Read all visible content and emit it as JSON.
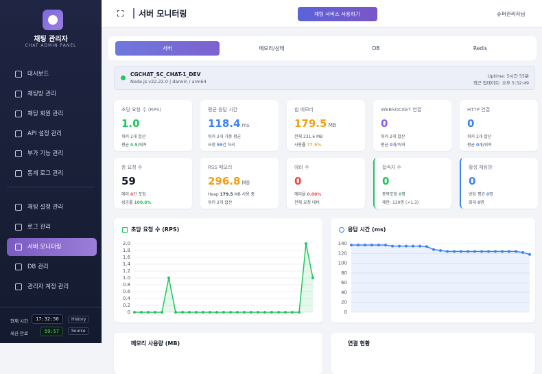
{
  "sidebar": {
    "title": "채팅 관리자",
    "subtitle": "CHAT ADMIN PANEL",
    "menu": [
      [
        "대시보드",
        "채팅방 관리",
        "채팅 회원 관리",
        "API 설정 관리",
        "부가 기능 관리",
        "통계 로그 관리"
      ],
      [
        "채팅 설정 관리",
        "로그 관리",
        "서버 모니터링",
        "DB 관리",
        "관리자 계정 관리"
      ]
    ],
    "active": [
      1,
      2
    ],
    "clock_label": "현재 시간",
    "clock": "17:32:50",
    "history": "History",
    "session_label": "세션 만료",
    "session": "59:57",
    "source": "Source"
  },
  "header": {
    "title": "서버 모니터링",
    "button": "채팅 서비스 사용하기",
    "user": "슈퍼관리자님"
  },
  "tabs": {
    "items": [
      "서버",
      "메모리/상태",
      "DB",
      "Redis"
    ],
    "active": 0
  },
  "server": {
    "name": "CGCHAT_SC_CHAT-1_DEV",
    "runtime": "Node.js v22.22.0 | darwin / arm64",
    "uptime": "Uptime: 5시간 55분",
    "updated": "최근 업데이트: 오후 5:32:49"
  },
  "cards": [
    {
      "label": "초당 요청 수 (RPS)",
      "value": "1.0",
      "color": "#22c55e",
      "lines": [
        [
          "워커 2개 합산"
        ],
        [
          "평균 ",
          "0.5",
          "/워커"
        ]
      ],
      "line_colors": [
        "#22c55e",
        "#22c55e"
      ]
    },
    {
      "label": "평균 응답 시간",
      "value": "118.4",
      "unit": "ms",
      "color": "#3b82f6",
      "lines": [
        [
          "워커 2개 가중 평균"
        ],
        [
          "요청 ",
          "59",
          "건 처리"
        ]
      ],
      "line_colors": [
        "#3b82f6",
        "#3b82f6"
      ]
    },
    {
      "label": "힙 메모리",
      "value": "179.5",
      "unit": "MB",
      "color": "#f59e0b",
      "lines": [
        [
          "전체 231.6 MB"
        ],
        [
          "사용률 ",
          "77.5%"
        ]
      ],
      "line_colors": [
        "#f59e0b",
        "#f59e0b"
      ]
    },
    {
      "label": "WEBSOCKET 연결",
      "value": "0",
      "color": "#8b5cf6",
      "lines": [
        [
          "워커 2개 합산"
        ],
        [
          "평균 ",
          "0",
          "개/워커"
        ]
      ],
      "line_colors": [
        "#8b5cf6",
        "#8b5cf6"
      ]
    },
    {
      "label": "HTTP 연결",
      "value": "0",
      "color": "#3b82f6",
      "lines": [
        [
          "워커 2개 합산"
        ],
        [
          "평균 ",
          "0",
          "개/워커"
        ]
      ],
      "line_colors": [
        "#3b82f6",
        "#3b82f6"
      ]
    },
    {
      "label": "총 요청 수",
      "value": "59",
      "color": "#111827",
      "lines": [
        [
          "에러 ",
          "0",
          "건 포함"
        ],
        [
          "성공률 ",
          "100.0%"
        ]
      ],
      "line_colors": [
        "#ef4444",
        "#22c55e"
      ]
    },
    {
      "label": "RSS 메모리",
      "value": "296.8",
      "unit": "MB",
      "color": "#f59e0b",
      "lines": [
        [
          "Heap ",
          "179.5",
          " MB 사용 중"
        ],
        [
          "워커 2개 합산"
        ]
      ],
      "line_colors": [
        "#374151",
        "#374151"
      ]
    },
    {
      "label": "에러 수",
      "value": "0",
      "color": "#ef4444",
      "lines": [
        [
          "에러율 ",
          "0.00%"
        ],
        [
          "전체 요청 대비"
        ]
      ],
      "line_colors": [
        "#ef4444",
        "#ef4444"
      ]
    },
    {
      "label": "접속자 수",
      "value": "0",
      "color": "#22c55e",
      "border": "#22c55e",
      "lines": [
        [
          "중복포함 ",
          "0",
          "명"
        ],
        [
          "제한: 130명 (×1.3)"
        ]
      ],
      "line_colors": [
        "#22c55e",
        "#22c55e"
      ]
    },
    {
      "label": "활성 채팅방",
      "value": "0",
      "color": "#3b82f6",
      "border": "#3b82f6",
      "lines": [
        [
          "방당 평균 ",
          "0",
          "명"
        ],
        [
          "최대 ",
          "0",
          "명"
        ]
      ],
      "line_colors": [
        "#3b82f6",
        "#3b82f6"
      ]
    }
  ],
  "charts": [
    {
      "type": "line",
      "title": "초당 요청 수 (RPS)",
      "color": "#22c55e",
      "fill": "rgba(34,197,94,0.12)",
      "values": [
        0,
        0,
        0,
        0,
        0,
        1.0,
        0,
        0,
        0,
        0,
        0,
        0,
        0,
        0,
        0,
        0,
        0,
        0,
        0,
        0,
        0,
        0,
        0,
        0,
        0,
        2.0,
        1.0
      ],
      "ylim": [
        0,
        2
      ],
      "yticks": [
        0,
        0.2,
        0.4,
        0.6,
        0.8,
        {
          "value": 1,
          "label": "1.0"
        },
        1.2,
        1.4,
        1.6,
        1.8,
        {
          "value": 2,
          "label": "2.0"
        }
      ],
      "grid": true
    },
    {
      "type": "line",
      "title": "응답 시간 (ms)",
      "color": "#3b82f6",
      "fill": "rgba(59,130,246,0.10)",
      "values": [
        137,
        137,
        137,
        137,
        137,
        137,
        135,
        135,
        135,
        135,
        135,
        134,
        128,
        126,
        124,
        124,
        124,
        124,
        124,
        124,
        124,
        124,
        124,
        124,
        124,
        122,
        118
      ],
      "ylim": [
        0,
        140
      ],
      "yticks": [
        0,
        20,
        40,
        60,
        80,
        100,
        120,
        140
      ],
      "grid": true
    }
  ],
  "more_panels": [
    "메모리 사용량 (MB)",
    "연결 현황"
  ]
}
